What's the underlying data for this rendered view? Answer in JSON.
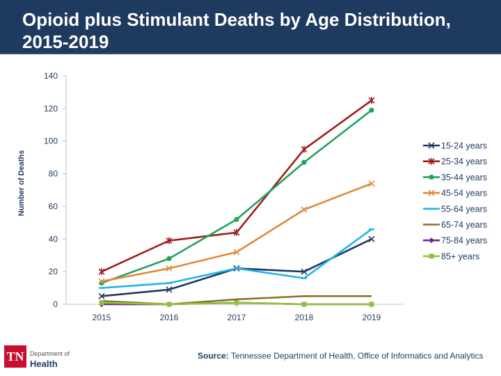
{
  "title": "Opioid plus Stimulant Deaths by Age Distribution, 2015-2019",
  "logo": {
    "mark": "TN",
    "department": "Department of",
    "name": "Health"
  },
  "source": {
    "label": "Source:",
    "text": "Tennessee Department of Health, Office of Informatics and Analytics"
  },
  "chart_data": {
    "type": "line",
    "title": "Opioid plus Stimulant Deaths by Age Distribution, 2015-2019",
    "xlabel": "",
    "ylabel": "Number of Deaths",
    "x": [
      "2015",
      "2016",
      "2017",
      "2018",
      "2019"
    ],
    "ylim": [
      0,
      140
    ],
    "yticks": [
      0,
      20,
      40,
      60,
      80,
      100,
      120,
      140
    ],
    "grid": false,
    "legend_position": "right",
    "series": [
      {
        "name": "15-24 years",
        "color": "#1f3864",
        "marker": "x",
        "values": [
          5,
          9,
          22,
          20,
          40
        ]
      },
      {
        "name": "25-34 years",
        "color": "#a01c1c",
        "marker": "star",
        "values": [
          20,
          39,
          44,
          95,
          125
        ]
      },
      {
        "name": "35-44 years",
        "color": "#21a35a",
        "marker": "circle",
        "values": [
          13,
          28,
          52,
          87,
          119
        ]
      },
      {
        "name": "45-54 years",
        "color": "#e08a3c",
        "marker": "x",
        "values": [
          14,
          22,
          32,
          58,
          74
        ]
      },
      {
        "name": "55-64 years",
        "color": "#1fb5e8",
        "marker": "dash",
        "values": [
          10,
          13,
          22,
          16,
          46
        ]
      },
      {
        "name": "65-74 years",
        "color": "#8b6f2f",
        "marker": "none",
        "values": [
          2,
          0,
          3,
          5,
          5
        ]
      },
      {
        "name": "75-84 years",
        "color": "#6a2a8c",
        "marker": "diamond",
        "values": [
          0,
          0,
          1,
          0,
          0
        ]
      },
      {
        "name": "85+ years",
        "color": "#8fc33f",
        "marker": "square",
        "values": [
          1,
          0,
          1,
          0,
          0
        ]
      }
    ]
  }
}
